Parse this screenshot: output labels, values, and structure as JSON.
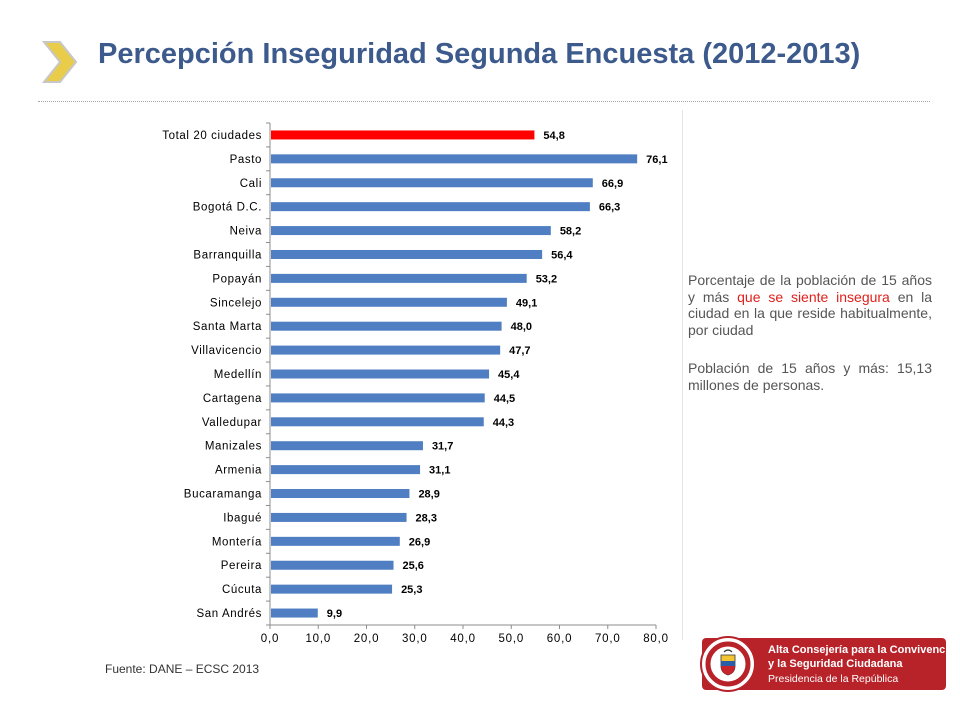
{
  "header": {
    "title": "Percepción Inseguridad Segunda Encuesta (2012-2013)"
  },
  "colors": {
    "title": "#3c5a8c",
    "bar_default": "#4f7ec2",
    "bar_highlight": "#ff0000",
    "chevron": "#e8cc4a",
    "logo_background": "#b8232a"
  },
  "chart_data": {
    "type": "bar",
    "orientation": "horizontal",
    "categories": [
      "Total 20 ciudades",
      "Pasto",
      "Cali",
      "Bogotá D.C.",
      "Neiva",
      "Barranquilla",
      "Popayán",
      "Sincelejo",
      "Santa Marta",
      "Villavicencio",
      "Medellín",
      "Cartagena",
      "Valledupar",
      "Manizales",
      "Armenia",
      "Bucaramanga",
      "Ibagué",
      "Montería",
      "Pereira",
      "Cúcuta",
      "San Andrés"
    ],
    "values": [
      54.8,
      76.1,
      66.9,
      66.3,
      58.2,
      56.4,
      53.2,
      49.1,
      48.0,
      47.7,
      45.4,
      44.5,
      44.3,
      31.7,
      31.1,
      28.9,
      28.3,
      26.9,
      25.6,
      25.3,
      9.9
    ],
    "value_labels": [
      "54,8",
      "76,1",
      "66,9",
      "66,3",
      "58,2",
      "56,4",
      "53,2",
      "49,1",
      "48,0",
      "47,7",
      "45,4",
      "44,5",
      "44,3",
      "31,7",
      "31,1",
      "28,9",
      "28,3",
      "26,9",
      "25,6",
      "25,3",
      "9,9"
    ],
    "highlight_index": 0,
    "xlim": [
      0,
      80
    ],
    "xticks": [
      "0,0",
      "10,0",
      "20,0",
      "30,0",
      "40,0",
      "50,0",
      "60,0",
      "70,0",
      "80,0"
    ],
    "grid": false,
    "legend": "none"
  },
  "description": {
    "part1": "Porcentaje de la población de 15 años y más ",
    "highlight": "que se siente insegura",
    "part2": " en la ciudad en la que reside habitualmente, por ciudad",
    "population": "Población de 15 años y más: 15,13 millones de personas."
  },
  "footer": {
    "source": "Fuente: DANE – ECSC 2013"
  },
  "logo": {
    "line1": "Alta Consejería para la Convivencia",
    "line2": "y la Seguridad Ciudadana",
    "line3": "Presidencia de la República",
    "seal_text": "REPÚBLICA DE COLOMBIA"
  }
}
